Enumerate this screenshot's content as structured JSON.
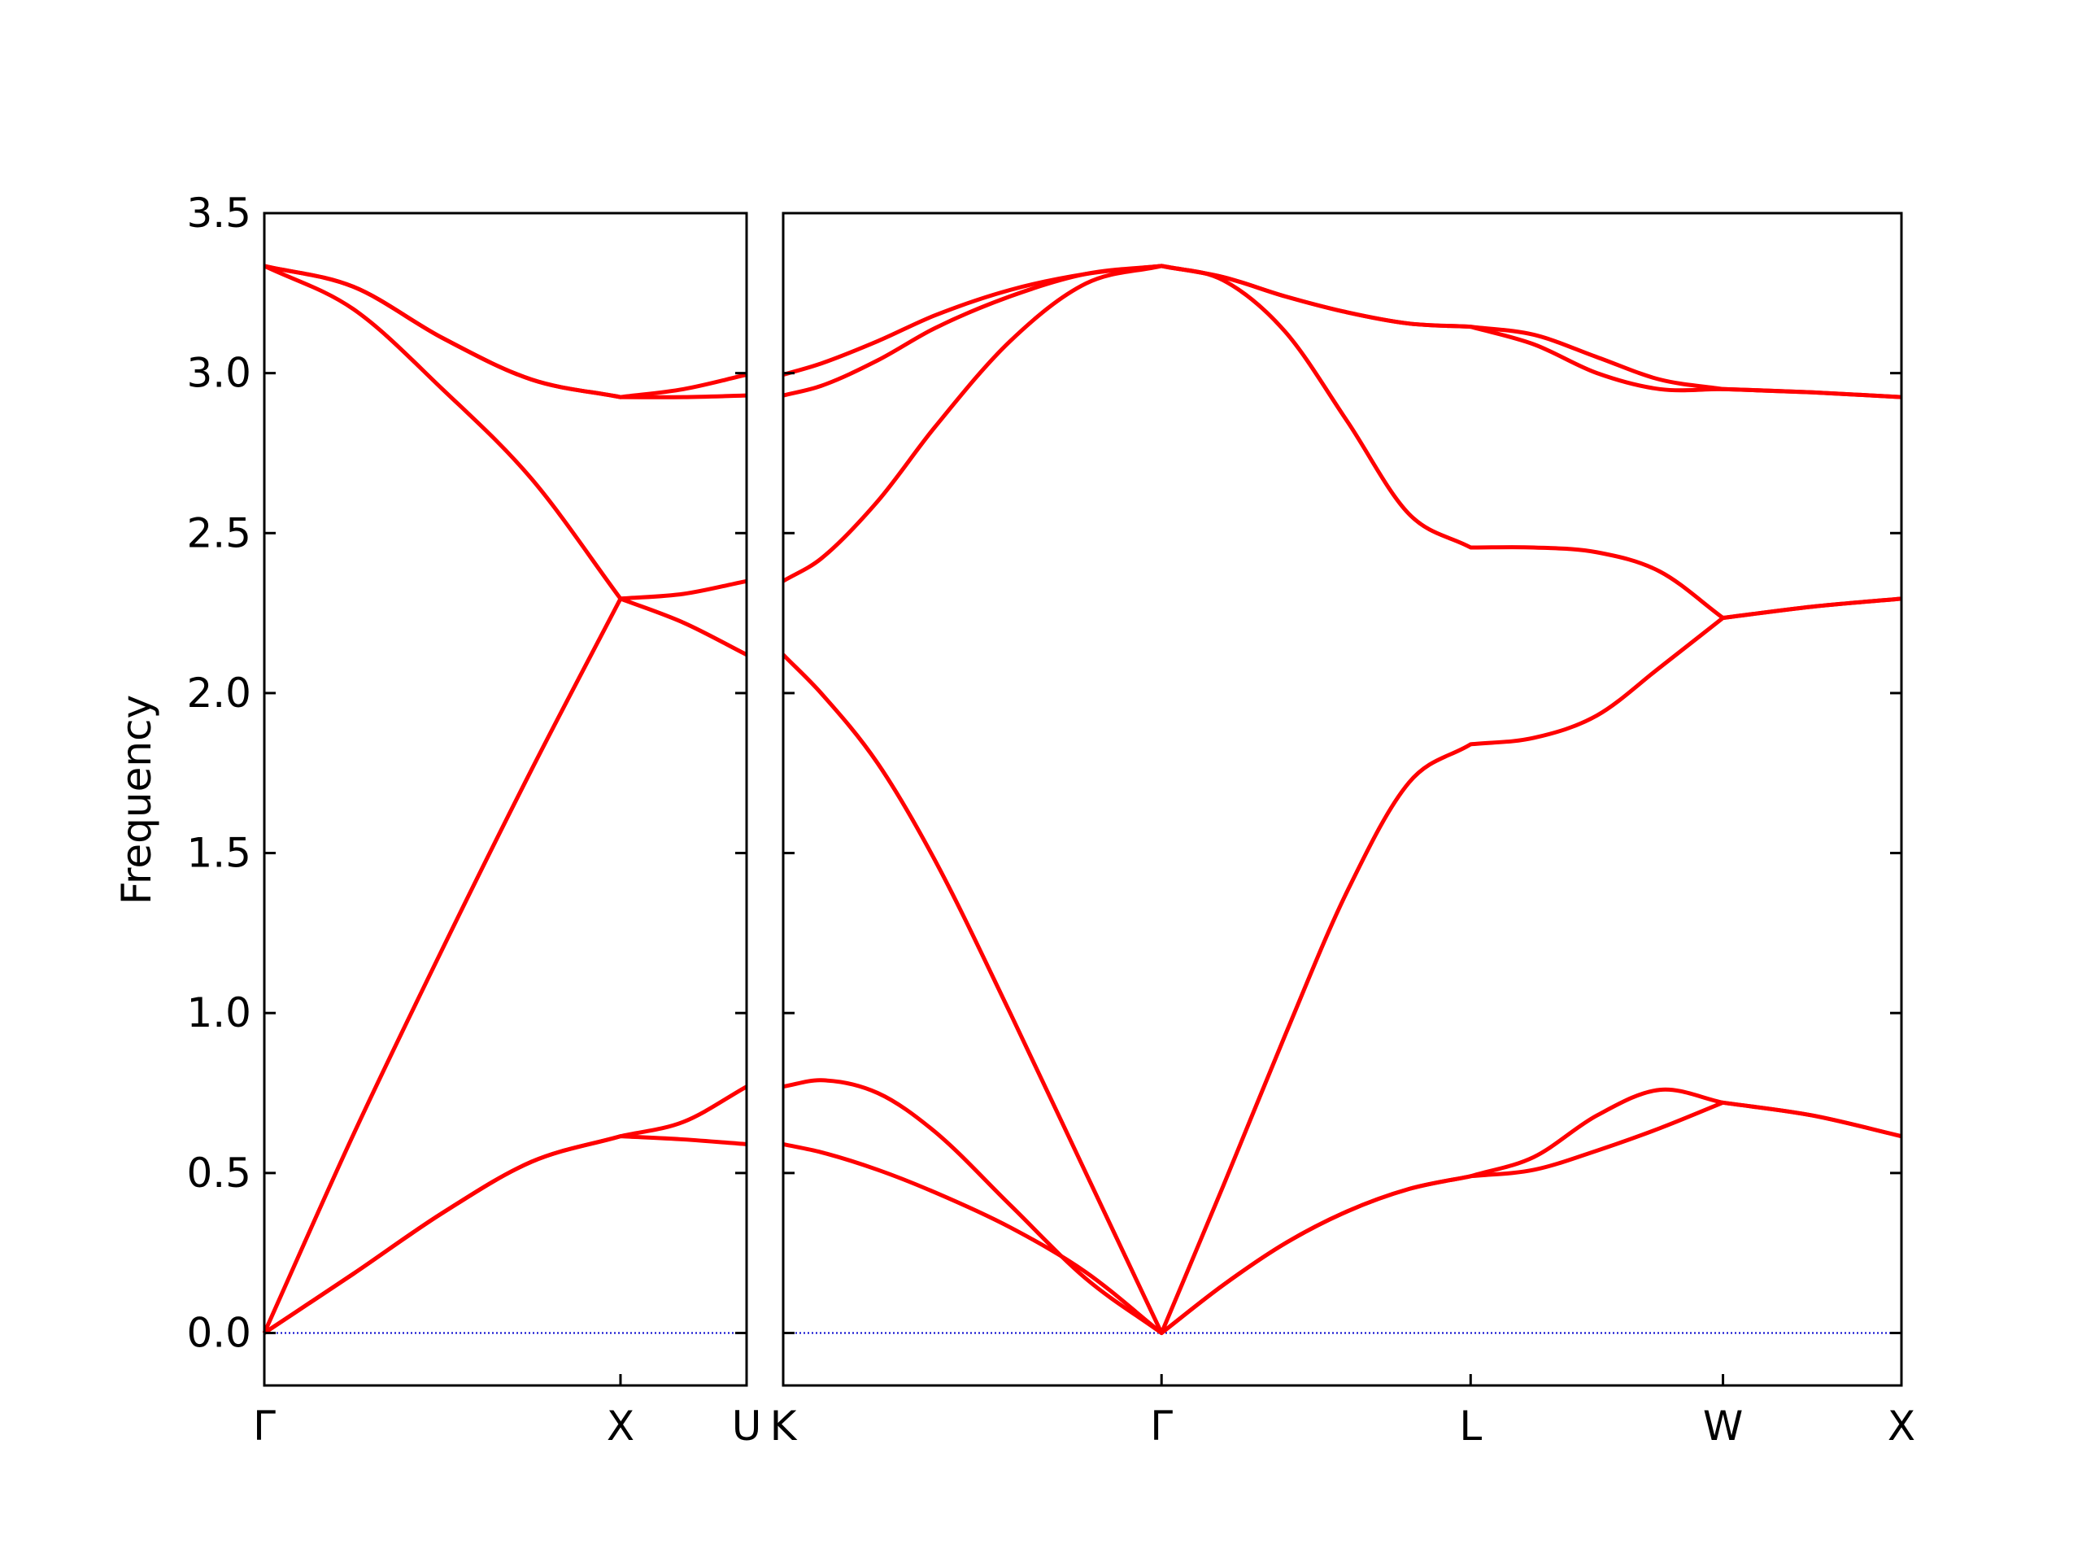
{
  "chart_data": [
    {
      "type": "line",
      "ylabel": "Frequency",
      "x": [
        0,
        0.25,
        0.5,
        0.75,
        1,
        1.177,
        1.354
      ],
      "xlim": [
        0,
        1.354
      ],
      "xticks": [
        {
          "value": 0,
          "label": "Γ"
        },
        {
          "value": 1,
          "label": "X"
        },
        {
          "value": 1.354,
          "label": "U"
        }
      ],
      "ylim": [
        -0.164,
        3.5
      ],
      "yticks": [
        {
          "value": 0,
          "label": "0.0"
        },
        0.5,
        {
          "value": 1,
          "label": "1.0"
        },
        1.5,
        {
          "value": 2,
          "label": "2.0"
        },
        2.5,
        {
          "value": 3,
          "label": "3.0"
        },
        3.5
      ],
      "reference_line": {
        "y": 0,
        "color": "#0000cc",
        "style": "dotted"
      },
      "series": [
        {
          "color": "#ff0000",
          "values": [
            0,
            0.185,
            0.375,
            0.535,
            0.615,
            0.66,
            0.77
          ]
        },
        {
          "color": "#ff0000",
          "values": [
            0,
            0.185,
            0.375,
            0.535,
            0.615,
            0.605,
            0.59
          ]
        },
        {
          "color": "#ff0000",
          "values": [
            0,
            0.62,
            1.2,
            1.76,
            2.295,
            2.22,
            2.12
          ]
        },
        {
          "color": "#ff0000",
          "values": [
            3.335,
            3.2,
            2.95,
            2.67,
            2.295,
            2.31,
            2.35
          ]
        },
        {
          "color": "#ff0000",
          "values": [
            3.335,
            3.27,
            3.11,
            2.98,
            2.925,
            2.925,
            2.93
          ]
        },
        {
          "color": "#ff0000",
          "values": [
            3.335,
            3.27,
            3.11,
            2.98,
            2.925,
            2.95,
            2.995
          ]
        }
      ]
    },
    {
      "type": "line",
      "x": [
        1.354,
        1.46,
        1.619,
        1.778,
        1.99,
        2.202,
        2.414,
        2.587,
        2.76,
        2.934,
        3.107,
        3.28,
        3.457,
        3.634,
        3.81,
        3.987,
        4.237,
        4.487
      ],
      "xlim": [
        1.354,
        4.487
      ],
      "xticks": [
        {
          "value": 1.354,
          "label": "K"
        },
        {
          "value": 2.414,
          "label": "Γ"
        },
        {
          "value": 3.28,
          "label": "L"
        },
        {
          "value": 3.987,
          "label": "W"
        },
        {
          "value": 4.487,
          "label": "X"
        }
      ],
      "ylim": [
        -0.164,
        3.5
      ],
      "reference_line": {
        "y": 0,
        "color": "#0000cc",
        "style": "dotted"
      },
      "series": [
        {
          "color": "#ff0000",
          "values": [
            0.59,
            0.565,
            0.51,
            0.44,
            0.33,
            0.19,
            0,
            0.15,
            0.28,
            0.38,
            0.45,
            0.49,
            0.51,
            0.57,
            0.64,
            0.72,
            0.68,
            0.615
          ]
        },
        {
          "color": "#ff0000",
          "values": [
            0.77,
            0.79,
            0.75,
            0.63,
            0.4,
            0.17,
            0,
            0.15,
            0.28,
            0.38,
            0.45,
            0.49,
            0.55,
            0.68,
            0.76,
            0.72,
            0.68,
            0.615
          ]
        },
        {
          "color": "#ff0000",
          "values": [
            2.12,
            2.0,
            1.78,
            1.48,
            1.0,
            0.5,
            0,
            0.46,
            0.93,
            1.38,
            1.72,
            1.84,
            1.86,
            1.93,
            2.08,
            2.235,
            2.27,
            2.295
          ]
        },
        {
          "color": "#ff0000",
          "values": [
            2.35,
            2.42,
            2.6,
            2.83,
            3.1,
            3.28,
            3.335,
            3.29,
            3.13,
            2.85,
            2.56,
            2.455,
            2.455,
            2.44,
            2.38,
            2.235,
            2.27,
            2.295
          ]
        },
        {
          "color": "#ff0000",
          "values": [
            2.93,
            2.96,
            3.04,
            3.14,
            3.24,
            3.31,
            3.335,
            3.3,
            3.24,
            3.19,
            3.155,
            3.145,
            3.09,
            3.0,
            2.95,
            2.95,
            2.94,
            2.925
          ]
        },
        {
          "color": "#ff0000",
          "values": [
            2.995,
            3.03,
            3.1,
            3.18,
            3.26,
            3.31,
            3.335,
            3.3,
            3.24,
            3.19,
            3.155,
            3.145,
            3.12,
            3.05,
            2.98,
            2.95,
            2.94,
            2.925
          ]
        }
      ]
    }
  ]
}
